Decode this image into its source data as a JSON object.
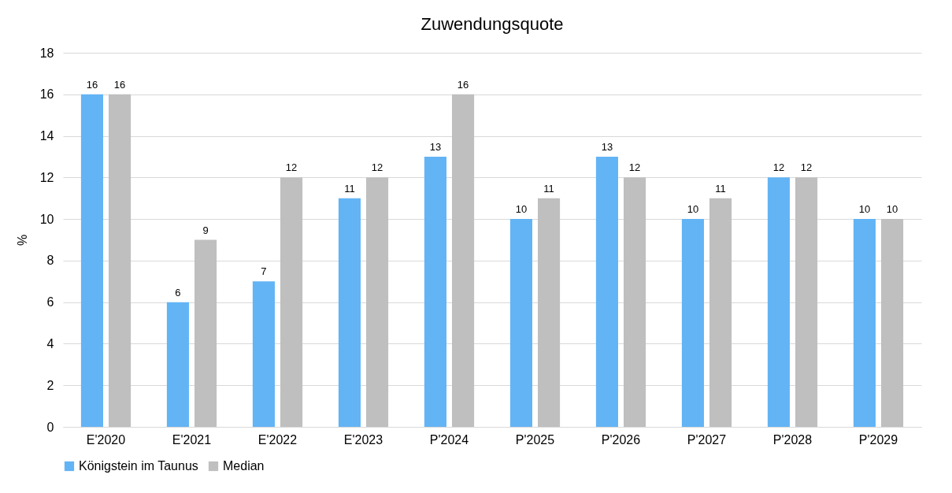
{
  "chart_data": {
    "type": "bar",
    "title": "Zuwendungsquote",
    "ylabel": "%",
    "categories": [
      "E'2020",
      "E'2021",
      "E'2022",
      "E'2023",
      "P'2024",
      "P'2025",
      "P'2026",
      "P'2027",
      "P'2028",
      "P'2029"
    ],
    "series": [
      {
        "name": "Königstein im Taunus",
        "color": "#63b4f5",
        "values": [
          16,
          6,
          7,
          11,
          13,
          10,
          13,
          10,
          12,
          10
        ]
      },
      {
        "name": "Median",
        "color": "#bfbfbf",
        "values": [
          16,
          9,
          12,
          12,
          16,
          11,
          12,
          11,
          12,
          10
        ]
      }
    ],
    "ylim": [
      0,
      18
    ],
    "yticks": [
      0,
      2,
      4,
      6,
      8,
      10,
      12,
      14,
      16,
      18
    ],
    "grid": "y",
    "legend": "bottom",
    "data_labels": true
  }
}
